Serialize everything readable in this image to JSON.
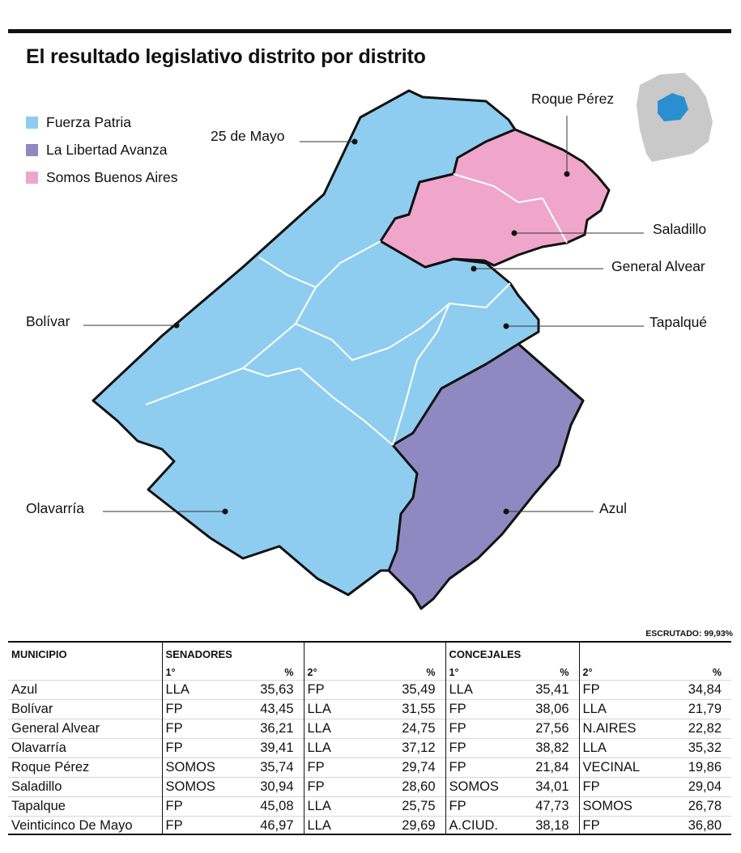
{
  "title": "El resultado legislativo distrito por distrito",
  "legend": [
    {
      "label": "Fuerza Patria",
      "color": "#8ecdf0"
    },
    {
      "label": "La Libertad Avanza",
      "color": "#9088c0"
    },
    {
      "label": "Somos Buenos Aires",
      "color": "#efa6ca"
    }
  ],
  "districts": {
    "veinticinco_de_mayo": "25 de Mayo",
    "roque_perez": "Roque Pérez",
    "saladillo": "Saladillo",
    "general_alvear": "General Alvear",
    "bolivar": "Bolívar",
    "tapalque": "Tapalqué",
    "olavarria": "Olavarría",
    "azul": "Azul"
  },
  "escrutado": "ESCRUTADO: 99,93%",
  "table": {
    "headers": {
      "municipio": "MUNICIPIO",
      "senadores": "SENADORES",
      "concejales": "CONCEJALES",
      "first": "1°",
      "second": "2°",
      "pct": "%"
    },
    "rows": [
      {
        "municipio": "Azul",
        "s1": "LLA",
        "s1p": "35,63",
        "s2": "FP",
        "s2p": "35,49",
        "c1": "LLA",
        "c1p": "35,41",
        "c2": "FP",
        "c2p": "34,84"
      },
      {
        "municipio": "Bolívar",
        "s1": "FP",
        "s1p": "43,45",
        "s2": "LLA",
        "s2p": "31,55",
        "c1": "FP",
        "c1p": "38,06",
        "c2": "LLA",
        "c2p": "21,79"
      },
      {
        "municipio": "General Alvear",
        "s1": "FP",
        "s1p": "36,21",
        "s2": "LLA",
        "s2p": "24,75",
        "c1": "FP",
        "c1p": "27,56",
        "c2": "N.AIRES",
        "c2p": "22,82"
      },
      {
        "municipio": "Olavarría",
        "s1": "FP",
        "s1p": "39,41",
        "s2": "LLA",
        "s2p": "37,12",
        "c1": "FP",
        "c1p": "38,82",
        "c2": "LLA",
        "c2p": "35,32"
      },
      {
        "municipio": "Roque Pérez",
        "s1": "SOMOS",
        "s1p": "35,74",
        "s2": "FP",
        "s2p": "29,74",
        "c1": "FP",
        "c1p": "21,84",
        "c2": "VECINAL",
        "c2p": "19,86"
      },
      {
        "municipio": "Saladillo",
        "s1": "SOMOS",
        "s1p": "30,94",
        "s2": "FP",
        "s2p": "28,60",
        "c1": "SOMOS",
        "c1p": "34,01",
        "c2": "FP",
        "c2p": "29,04"
      },
      {
        "municipio": "Tapalque",
        "s1": "FP",
        "s1p": "45,08",
        "s2": "LLA",
        "s2p": "25,75",
        "c1": "FP",
        "c1p": "47,73",
        "c2": "SOMOS",
        "c2p": "26,78"
      },
      {
        "municipio": "Veinticinco De Mayo",
        "s1": "FP",
        "s1p": "46,97",
        "s2": "LLA",
        "s2p": "29,69",
        "c1": "A.CIUD.",
        "c1p": "38,18",
        "c2": "FP",
        "c2p": "36,80"
      }
    ]
  }
}
